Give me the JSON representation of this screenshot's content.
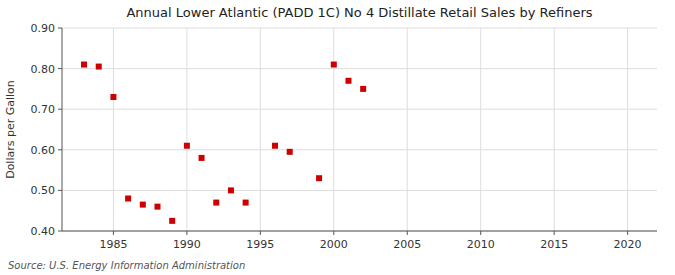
{
  "chart_data": {
    "type": "scatter",
    "title": "Annual Lower Atlantic (PADD 1C) No 4 Distillate Retail Sales by Refiners",
    "ylabel": "Dollars per Gallon",
    "source": "Source: U.S. Energy Information Administration",
    "color": "#cc0000",
    "marker": "square",
    "grid": true,
    "xlim": [
      1981.5,
      2022
    ],
    "ylim": [
      0.4,
      0.9
    ],
    "xticks": [
      1985,
      1990,
      1995,
      2000,
      2005,
      2010,
      2015,
      2020
    ],
    "yticks": [
      {
        "value": 0.4,
        "label": "0.40"
      },
      {
        "value": 0.5,
        "label": "0.50"
      },
      {
        "value": 0.6,
        "label": "0.60"
      },
      {
        "value": 0.7,
        "label": "0.70"
      },
      {
        "value": 0.8,
        "label": "0.80"
      },
      {
        "value": 0.9,
        "label": "0.90"
      }
    ],
    "x": [
      1983,
      1984,
      1985,
      1986,
      1987,
      1988,
      1989,
      1990,
      1991,
      1992,
      1993,
      1994,
      1996,
      1997,
      1999,
      2000,
      2001,
      2002
    ],
    "values": [
      0.81,
      0.805,
      0.73,
      0.48,
      0.465,
      0.46,
      0.425,
      0.61,
      0.58,
      0.47,
      0.5,
      0.47,
      0.61,
      0.595,
      0.53,
      0.81,
      0.77,
      0.75
    ]
  }
}
